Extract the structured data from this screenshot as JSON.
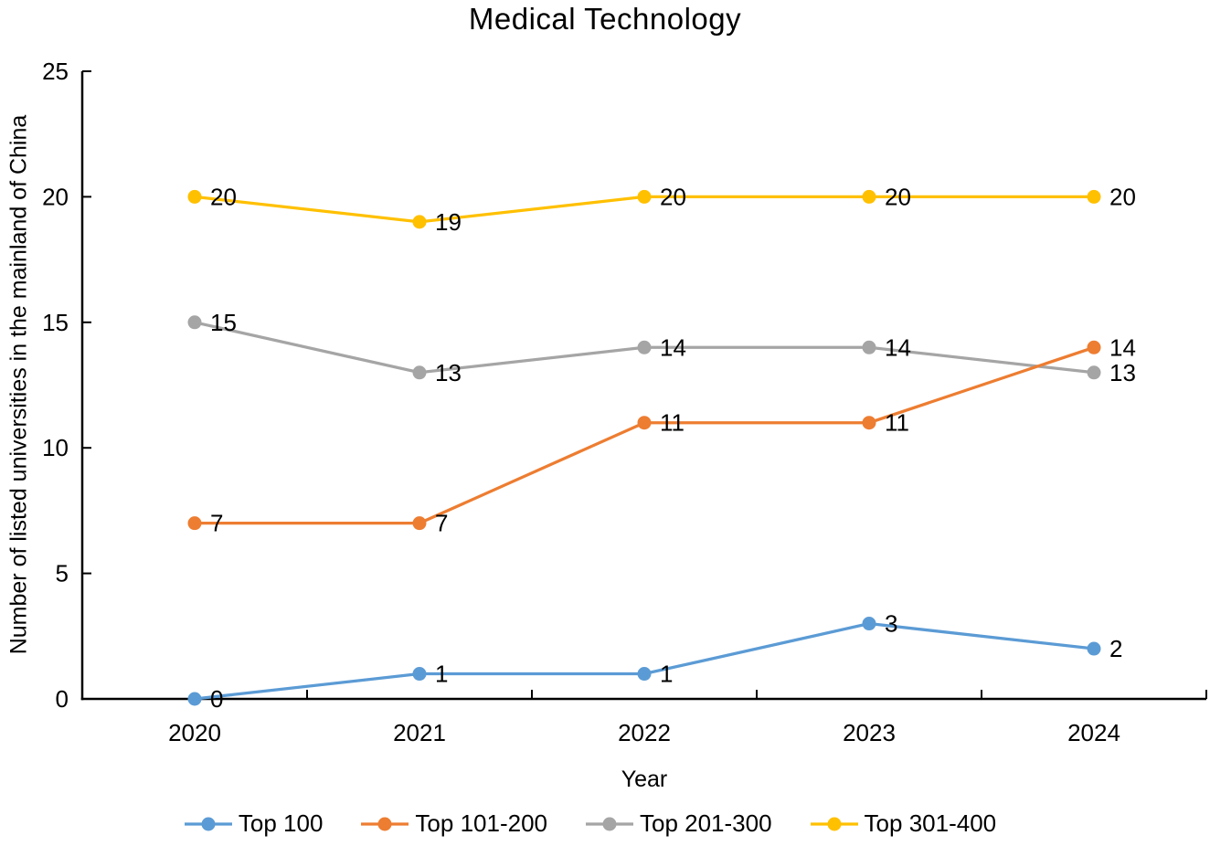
{
  "chart_data": {
    "type": "line",
    "title": "Medical Technology",
    "xlabel": "Year",
    "ylabel": "Number of listed universities in the mainland of China",
    "categories": [
      "2020",
      "2021",
      "2022",
      "2023",
      "2024"
    ],
    "series": [
      {
        "name": "Top 100",
        "color": "#5B9BD5",
        "values": [
          0,
          1,
          1,
          3,
          2
        ]
      },
      {
        "name": "Top 101-200",
        "color": "#ED7D31",
        "values": [
          7,
          7,
          11,
          11,
          14
        ]
      },
      {
        "name": "Top 201-300",
        "color": "#A5A5A5",
        "values": [
          15,
          13,
          14,
          14,
          13
        ]
      },
      {
        "name": "Top 301-400",
        "color": "#FFC000",
        "values": [
          20,
          19,
          20,
          20,
          20
        ]
      }
    ],
    "ylim": [
      0,
      25
    ],
    "yticks": [
      0,
      5,
      10,
      15,
      20,
      25
    ],
    "grid": false,
    "data_labels": true,
    "legend_position": "bottom",
    "axis_color": "#000000",
    "text_color": "#000000"
  }
}
